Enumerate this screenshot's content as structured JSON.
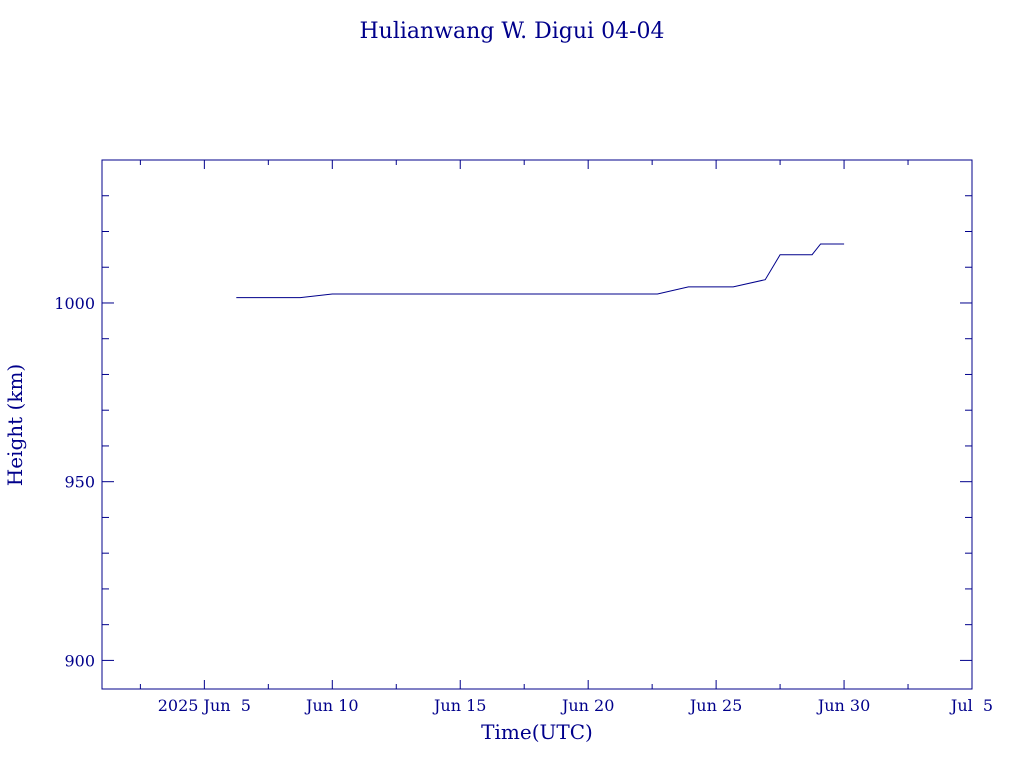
{
  "chart_data": {
    "type": "line",
    "title": "Hulianwang W. Digui 04-04",
    "xlabel": "Time(UTC)",
    "ylabel": "Height (km)",
    "x_unit": "date",
    "xlim": [
      "2025-06-01",
      "2025-07-05"
    ],
    "ylim": [
      892,
      1040
    ],
    "x_ticks": [
      {
        "x": "2025-06-05",
        "label": "2025 Jun  5"
      },
      {
        "x": "2025-06-10",
        "label": "Jun 10"
      },
      {
        "x": "2025-06-15",
        "label": "Jun 15"
      },
      {
        "x": "2025-06-20",
        "label": "Jun 20"
      },
      {
        "x": "2025-06-25",
        "label": "Jun 25"
      },
      {
        "x": "2025-06-30",
        "label": "Jun 30"
      },
      {
        "x": "2025-07-05",
        "label": "Jul  5"
      }
    ],
    "y_ticks": [
      900,
      950,
      1000
    ],
    "grid": false,
    "series": [
      {
        "color": "#00008b",
        "points": [
          {
            "x": "2025-06-06T06:00",
            "y": 1001.5
          },
          {
            "x": "2025-06-08T18:00",
            "y": 1001.5
          },
          {
            "x": "2025-06-10T00:00",
            "y": 1002.5
          },
          {
            "x": "2025-06-22T17:00",
            "y": 1002.5
          },
          {
            "x": "2025-06-23T22:00",
            "y": 1004.5
          },
          {
            "x": "2025-06-25T16:00",
            "y": 1004.5
          },
          {
            "x": "2025-06-26T22:00",
            "y": 1006.5
          },
          {
            "x": "2025-06-27T12:00",
            "y": 1013.5
          },
          {
            "x": "2025-06-28T18:00",
            "y": 1013.5
          },
          {
            "x": "2025-06-29T02:00",
            "y": 1016.5
          },
          {
            "x": "2025-06-30T00:00",
            "y": 1016.5
          }
        ]
      }
    ]
  }
}
